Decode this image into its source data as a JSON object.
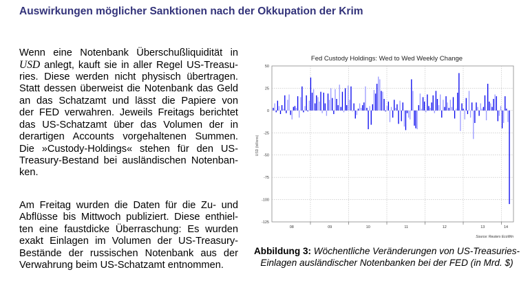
{
  "slide": {
    "title": "Auswirkungen möglicher Sanktionen nach der Okkupation der Krim"
  },
  "body": {
    "paragraph1": {
      "line1": "Wenn eine Notenbank Überschußliquidität in",
      "usd": "USD",
      "line2": " anlegt, kauft sie in aller Regel US-Treasu-",
      "line3": "ries. Diese werden nicht physisch übertragen.",
      "line4": "Statt dessen überweist die Notenbank das Geld",
      "line5": "an das Schatzamt und lässt die Papiere von",
      "line6": "der FED verwahren. Jeweils Freitags berichtet",
      "line7": "das US-Schatzamt über das Volumen der in",
      "line8": "derartigen Accounts vorgehaltenen Summen.",
      "line9": "Die »Custody-Holdings« stehen für den US-",
      "line10": "Treasury-Bestand bei ausländischen Notenban-",
      "line11": "ken."
    },
    "paragraph2": {
      "line1": "Am Freitag wurden die Daten für die Zu- und",
      "line2": "Abflüsse bis Mittwoch publiziert. Diese enthiel-",
      "line3": "ten eine faustdicke Überraschung: Es wurden",
      "line4": "exakt Einlagen im Volumen der US-Treasury-",
      "line5": "Bestände der russischen Notenbank aus der",
      "line6": "Verwahrung beim US-Schatzamt entnommen."
    }
  },
  "caption": {
    "label": "Abbildung 3:",
    "text1": " Wöchentliche Veränderungen von US-Treasuries-",
    "text2": "Einlagen ausländischer Notenbanken bei der FED (in Mrd. $)"
  },
  "colors": {
    "title": "#33337a",
    "bar_dark": "#0000ee",
    "bar_light": "#9999ff"
  },
  "chart_data": {
    "type": "bar",
    "title": "Fed Custody Holdings: Wed to Wed Weekly Change",
    "ylabel": "USD (billions)",
    "xlabel": "",
    "source": "Source: Reuters EcoWin",
    "ylim": [
      -125,
      50
    ],
    "yticks": [
      "50",
      "25",
      "0",
      "-25",
      "-50",
      "-75",
      "-100",
      "-125"
    ],
    "ytick_values": [
      50,
      25,
      0,
      -25,
      -50,
      -75,
      -100,
      -125
    ],
    "xticks": [
      "08",
      "09",
      "10",
      "11",
      "12",
      "13",
      "14"
    ],
    "grid": true,
    "values": [
      3,
      8,
      -2,
      11,
      5,
      -4,
      6,
      2,
      17,
      -3,
      12,
      18,
      -5,
      -10,
      4,
      5,
      3,
      16,
      -8,
      15,
      27,
      -2,
      5,
      17,
      -1,
      11,
      37,
      20,
      24,
      8,
      17,
      15,
      10,
      21,
      -3,
      20,
      8,
      -6,
      19,
      12,
      25,
      14,
      -4,
      24,
      13,
      6,
      29,
      4,
      21,
      -2,
      25,
      6,
      28,
      12,
      27,
      -1,
      8,
      -9,
      -5,
      2,
      8,
      3,
      6,
      9,
      27,
      3,
      -21,
      5,
      -16,
      7,
      23,
      19,
      30,
      38,
      35,
      22,
      21,
      13,
      -1,
      5,
      10,
      -13,
      4,
      -8,
      12,
      3,
      7,
      -15,
      11,
      -12,
      9,
      -18,
      -22,
      -3,
      -8,
      -10,
      35,
      22,
      -17,
      -20,
      -21,
      6,
      19,
      2,
      15,
      10,
      -2,
      18,
      5,
      3,
      9,
      17,
      -3,
      22,
      13,
      6,
      18,
      -8,
      12,
      4,
      16,
      9,
      3,
      12,
      4,
      15,
      -9,
      2,
      20,
      42,
      -23,
      8,
      2,
      -10,
      14,
      -4,
      22,
      -8,
      9,
      -32,
      -14,
      9,
      4,
      -6,
      8,
      2,
      4,
      17,
      -11,
      30,
      10,
      8,
      4,
      13,
      18,
      16,
      -12,
      -6,
      5,
      -20,
      -14,
      16,
      2,
      -13,
      -105
    ]
  }
}
